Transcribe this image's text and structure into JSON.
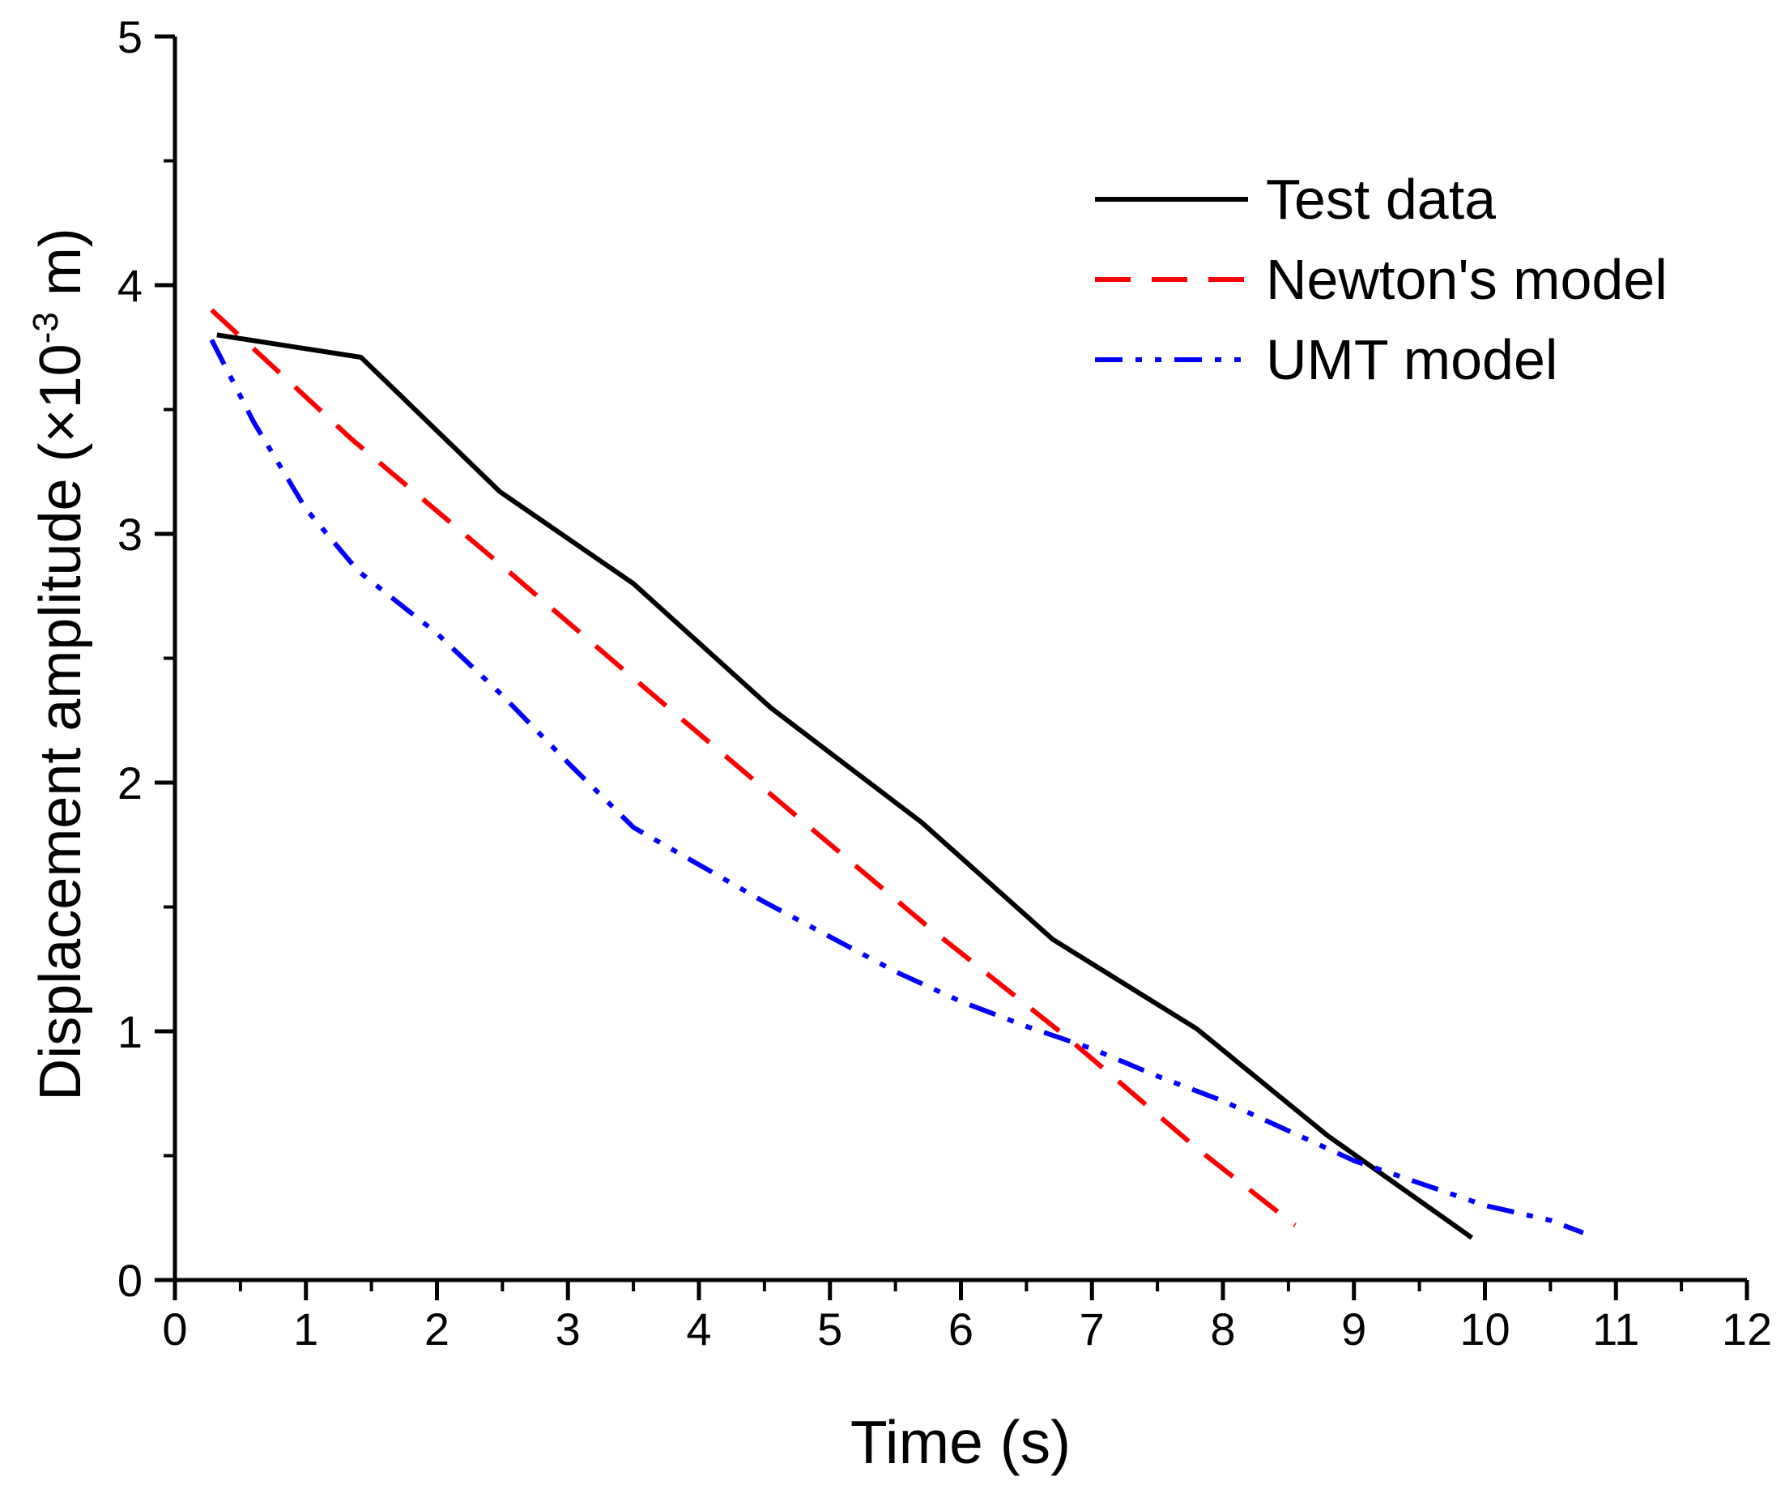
{
  "chart_data": {
    "type": "line",
    "xlabel": "Time (s)",
    "ylabel": {
      "main": "Displacement amplitude (×10",
      "exponent": "-3",
      "suffix": " m)"
    },
    "xlim": [
      0,
      12
    ],
    "ylim": [
      0,
      5
    ],
    "x_ticks": [
      0,
      1,
      2,
      3,
      4,
      5,
      6,
      7,
      8,
      9,
      10,
      11,
      12
    ],
    "y_ticks": [
      0,
      1,
      2,
      3,
      4,
      5
    ],
    "x_tick_labels": [
      "0",
      "1",
      "2",
      "3",
      "4",
      "5",
      "6",
      "7",
      "8",
      "9",
      "10",
      "11",
      "12"
    ],
    "y_tick_labels": [
      "0",
      "1",
      "2",
      "3",
      "4",
      "5"
    ],
    "grid": false,
    "legend_position": "top-right",
    "series": [
      {
        "name": "Test data",
        "color": "#000000",
        "style": "solid",
        "x": [
          0.32,
          1.42,
          2.48,
          3.5,
          4.55,
          5.7,
          6.7,
          7.8,
          8.8,
          9.9
        ],
        "y": [
          3.8,
          3.71,
          3.17,
          2.8,
          2.3,
          1.84,
          1.37,
          1.01,
          0.58,
          0.17
        ]
      },
      {
        "name": "Newton's model",
        "color": "#ff0000",
        "style": "dashed",
        "x": [
          0.28,
          1.35,
          2.5,
          3.5,
          4.6,
          5.75,
          6.8,
          7.8,
          8.55
        ],
        "y": [
          3.9,
          3.38,
          2.87,
          2.42,
          1.93,
          1.42,
          0.98,
          0.53,
          0.22
        ]
      },
      {
        "name": "UMT model",
        "color": "#0000ff",
        "style": "dash-dot-dot",
        "x": [
          0.28,
          0.6,
          1.0,
          1.4,
          2.0,
          2.5,
          3.0,
          3.5,
          4.0,
          4.5,
          5.0,
          5.5,
          6.0,
          6.5,
          7.0,
          7.5,
          8.0,
          8.5,
          9.0,
          9.5,
          10.0,
          10.5,
          10.75
        ],
        "y": [
          3.78,
          3.45,
          3.1,
          2.85,
          2.6,
          2.35,
          2.08,
          1.82,
          1.67,
          1.52,
          1.38,
          1.24,
          1.12,
          1.02,
          0.93,
          0.82,
          0.72,
          0.6,
          0.48,
          0.39,
          0.3,
          0.24,
          0.19
        ]
      }
    ]
  }
}
